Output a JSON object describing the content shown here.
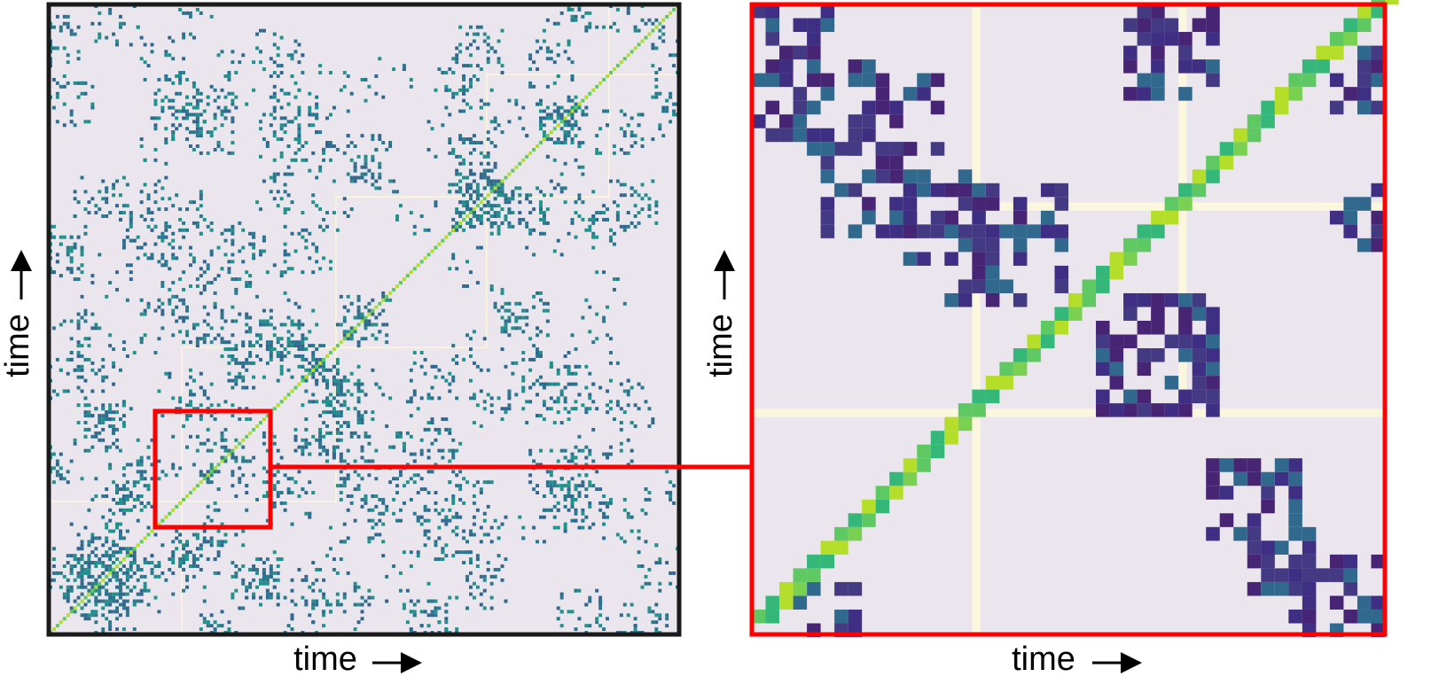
{
  "panels": [
    {
      "x_label": "time",
      "y_label": "time"
    },
    {
      "x_label": "time",
      "y_label": "time"
    }
  ]
}
